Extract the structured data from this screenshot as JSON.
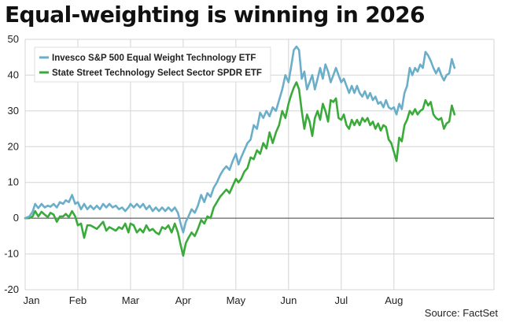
{
  "chart_data": {
    "type": "line",
    "title": "Equal-weighting is winning in 2026",
    "source": "Source: FactSet",
    "ylim": [
      -20,
      50
    ],
    "yticks": [
      -20,
      -10,
      0,
      10,
      20,
      30,
      40,
      50
    ],
    "ytick_labels": [
      "-20",
      "-10",
      "0",
      "10",
      "20",
      "30",
      "40",
      "50"
    ],
    "xlim": [
      0,
      8.9
    ],
    "xticks": [
      0,
      1,
      2,
      3,
      4,
      5,
      6,
      7
    ],
    "xtick_labels": [
      "Jan",
      "Feb",
      "Mar",
      "Apr",
      "May",
      "Jun",
      "Jul",
      "Aug"
    ],
    "grid": true,
    "legend_position": "top-left",
    "series": [
      {
        "name": "Invesco S&P 500 Equal Weight Technology ETF",
        "color": "#6aaec9",
        "points": [
          [
            0,
            0
          ],
          [
            0.08,
            0.5
          ],
          [
            0.14,
            1.8
          ],
          [
            0.19,
            4
          ],
          [
            0.25,
            2.8
          ],
          [
            0.31,
            4
          ],
          [
            0.37,
            3
          ],
          [
            0.43,
            3.5
          ],
          [
            0.48,
            3.2
          ],
          [
            0.54,
            4
          ],
          [
            0.6,
            3
          ],
          [
            0.66,
            4.5
          ],
          [
            0.72,
            4
          ],
          [
            0.77,
            5
          ],
          [
            0.83,
            4.5
          ],
          [
            0.89,
            6.5
          ],
          [
            0.95,
            4
          ],
          [
            1,
            4.5
          ],
          [
            1.06,
            2.5
          ],
          [
            1.12,
            4
          ],
          [
            1.18,
            2.5
          ],
          [
            1.24,
            3.5
          ],
          [
            1.3,
            2.5
          ],
          [
            1.36,
            3.5
          ],
          [
            1.42,
            2.5
          ],
          [
            1.48,
            4
          ],
          [
            1.54,
            3
          ],
          [
            1.6,
            4
          ],
          [
            1.66,
            3
          ],
          [
            1.72,
            3.5
          ],
          [
            1.78,
            2.5
          ],
          [
            1.84,
            3
          ],
          [
            1.9,
            2
          ],
          [
            1.96,
            3
          ],
          [
            2,
            4
          ],
          [
            2.06,
            3
          ],
          [
            2.12,
            4
          ],
          [
            2.18,
            3
          ],
          [
            2.24,
            4
          ],
          [
            2.3,
            2.5
          ],
          [
            2.36,
            3.5
          ],
          [
            2.42,
            2
          ],
          [
            2.48,
            3
          ],
          [
            2.54,
            2
          ],
          [
            2.6,
            3
          ],
          [
            2.66,
            2
          ],
          [
            2.72,
            3
          ],
          [
            2.78,
            2
          ],
          [
            2.84,
            3
          ],
          [
            2.9,
            1.5
          ],
          [
            2.96,
            -2
          ],
          [
            3,
            -4
          ],
          [
            3.05,
            -1
          ],
          [
            3.1,
            0.5
          ],
          [
            3.16,
            2.5
          ],
          [
            3.22,
            1.5
          ],
          [
            3.28,
            3.5
          ],
          [
            3.34,
            6.5
          ],
          [
            3.4,
            4.5
          ],
          [
            3.46,
            7
          ],
          [
            3.52,
            6
          ],
          [
            3.58,
            8.5
          ],
          [
            3.64,
            10
          ],
          [
            3.7,
            12
          ],
          [
            3.76,
            13.5
          ],
          [
            3.82,
            14.5
          ],
          [
            3.88,
            13.5
          ],
          [
            3.94,
            16
          ],
          [
            4,
            18
          ],
          [
            4.05,
            15
          ],
          [
            4.1,
            17
          ],
          [
            4.16,
            19
          ],
          [
            4.22,
            21
          ],
          [
            4.28,
            22
          ],
          [
            4.34,
            26
          ],
          [
            4.4,
            25
          ],
          [
            4.46,
            29.5
          ],
          [
            4.52,
            28
          ],
          [
            4.58,
            30
          ],
          [
            4.64,
            28.5
          ],
          [
            4.7,
            31
          ],
          [
            4.76,
            30
          ],
          [
            4.82,
            33
          ],
          [
            4.88,
            36
          ],
          [
            4.94,
            40
          ],
          [
            5,
            38
          ],
          [
            5.05,
            42.5
          ],
          [
            5.1,
            47
          ],
          [
            5.15,
            48
          ],
          [
            5.2,
            47
          ],
          [
            5.25,
            39
          ],
          [
            5.3,
            41
          ],
          [
            5.35,
            36
          ],
          [
            5.4,
            38
          ],
          [
            5.45,
            40
          ],
          [
            5.5,
            36
          ],
          [
            5.55,
            39
          ],
          [
            5.6,
            42
          ],
          [
            5.65,
            39
          ],
          [
            5.7,
            43
          ],
          [
            5.75,
            41
          ],
          [
            5.8,
            38
          ],
          [
            5.85,
            40
          ],
          [
            5.9,
            42
          ],
          [
            5.95,
            40
          ],
          [
            6,
            38
          ],
          [
            6.05,
            39
          ],
          [
            6.1,
            37
          ],
          [
            6.15,
            35
          ],
          [
            6.2,
            37
          ],
          [
            6.25,
            35
          ],
          [
            6.3,
            37
          ],
          [
            6.35,
            35
          ],
          [
            6.4,
            34
          ],
          [
            6.45,
            35.5
          ],
          [
            6.5,
            33.5
          ],
          [
            6.55,
            35
          ],
          [
            6.6,
            33
          ],
          [
            6.65,
            34
          ],
          [
            6.7,
            32
          ],
          [
            6.75,
            32.5
          ],
          [
            6.8,
            31
          ],
          [
            6.85,
            33
          ],
          [
            6.9,
            31
          ],
          [
            6.95,
            30.5
          ],
          [
            7,
            31
          ],
          [
            7.05,
            29
          ],
          [
            7.1,
            32
          ],
          [
            7.15,
            30.5
          ],
          [
            7.2,
            35
          ],
          [
            7.25,
            37
          ],
          [
            7.3,
            42
          ],
          [
            7.35,
            40
          ],
          [
            7.4,
            42
          ],
          [
            7.45,
            41
          ],
          [
            7.5,
            43
          ],
          [
            7.55,
            42
          ],
          [
            7.6,
            46.5
          ],
          [
            7.65,
            45.5
          ],
          [
            7.7,
            44
          ],
          [
            7.75,
            42
          ],
          [
            7.8,
            40.5
          ],
          [
            7.85,
            42
          ],
          [
            7.9,
            40
          ],
          [
            7.95,
            38.5
          ],
          [
            8,
            40
          ],
          [
            8.05,
            40.5
          ],
          [
            8.1,
            44.5
          ],
          [
            8.15,
            42
          ]
        ]
      },
      {
        "name": "State Street Technology Select Sector SPDR ETF",
        "color": "#3aaa3a",
        "points": [
          [
            0,
            0
          ],
          [
            0.08,
            0
          ],
          [
            0.14,
            0.5
          ],
          [
            0.19,
            2
          ],
          [
            0.25,
            0.5
          ],
          [
            0.31,
            1.8
          ],
          [
            0.37,
            1
          ],
          [
            0.43,
            0.3
          ],
          [
            0.48,
            1.5
          ],
          [
            0.54,
            1
          ],
          [
            0.6,
            -1
          ],
          [
            0.66,
            0.5
          ],
          [
            0.72,
            0.5
          ],
          [
            0.77,
            1.2
          ],
          [
            0.83,
            0.3
          ],
          [
            0.89,
            2
          ],
          [
            0.95,
            0.5
          ],
          [
            1,
            -2
          ],
          [
            1.06,
            -1.5
          ],
          [
            1.12,
            -5.5
          ],
          [
            1.18,
            -2
          ],
          [
            1.24,
            -2
          ],
          [
            1.3,
            -2.5
          ],
          [
            1.36,
            -3
          ],
          [
            1.42,
            -2
          ],
          [
            1.48,
            -1
          ],
          [
            1.54,
            -3.5
          ],
          [
            1.6,
            -2.5
          ],
          [
            1.66,
            -3
          ],
          [
            1.72,
            -3.5
          ],
          [
            1.78,
            -2.5
          ],
          [
            1.84,
            -3
          ],
          [
            1.9,
            -1.5
          ],
          [
            1.96,
            -4
          ],
          [
            2,
            -1.5
          ],
          [
            2.06,
            -2
          ],
          [
            2.12,
            -4
          ],
          [
            2.18,
            -3
          ],
          [
            2.24,
            -4
          ],
          [
            2.3,
            -2
          ],
          [
            2.36,
            -3.5
          ],
          [
            2.42,
            -3
          ],
          [
            2.48,
            -4
          ],
          [
            2.54,
            -4.5
          ],
          [
            2.6,
            -2.5
          ],
          [
            2.66,
            -3
          ],
          [
            2.72,
            -2
          ],
          [
            2.78,
            -4
          ],
          [
            2.84,
            -1.5
          ],
          [
            2.9,
            -4
          ],
          [
            2.96,
            -8
          ],
          [
            3,
            -10.5
          ],
          [
            3.05,
            -7
          ],
          [
            3.1,
            -5.5
          ],
          [
            3.16,
            -4
          ],
          [
            3.22,
            -5
          ],
          [
            3.28,
            -3
          ],
          [
            3.34,
            -0.5
          ],
          [
            3.4,
            -1.5
          ],
          [
            3.46,
            0.5
          ],
          [
            3.52,
            0
          ],
          [
            3.58,
            3
          ],
          [
            3.64,
            4.5
          ],
          [
            3.7,
            6
          ],
          [
            3.76,
            7
          ],
          [
            3.82,
            8
          ],
          [
            3.88,
            7
          ],
          [
            3.94,
            9
          ],
          [
            4,
            11
          ],
          [
            4.05,
            10
          ],
          [
            4.1,
            11
          ],
          [
            4.16,
            13
          ],
          [
            4.22,
            14
          ],
          [
            4.28,
            17
          ],
          [
            4.34,
            16.5
          ],
          [
            4.4,
            19
          ],
          [
            4.46,
            18
          ],
          [
            4.52,
            21
          ],
          [
            4.58,
            19.5
          ],
          [
            4.64,
            24
          ],
          [
            4.7,
            21
          ],
          [
            4.76,
            24
          ],
          [
            4.82,
            26
          ],
          [
            4.88,
            30
          ],
          [
            4.94,
            28
          ],
          [
            5,
            32
          ],
          [
            5.05,
            34.5
          ],
          [
            5.1,
            36.5
          ],
          [
            5.15,
            38
          ],
          [
            5.2,
            36
          ],
          [
            5.25,
            30
          ],
          [
            5.3,
            25
          ],
          [
            5.35,
            29
          ],
          [
            5.4,
            27
          ],
          [
            5.45,
            23
          ],
          [
            5.5,
            28
          ],
          [
            5.55,
            30
          ],
          [
            5.6,
            27.5
          ],
          [
            5.65,
            32
          ],
          [
            5.7,
            30
          ],
          [
            5.75,
            27
          ],
          [
            5.8,
            33
          ],
          [
            5.85,
            32.5
          ],
          [
            5.9,
            33.5
          ],
          [
            5.95,
            28
          ],
          [
            6,
            27.5
          ],
          [
            6.05,
            29
          ],
          [
            6.1,
            26
          ],
          [
            6.15,
            25
          ],
          [
            6.2,
            27.5
          ],
          [
            6.25,
            26
          ],
          [
            6.3,
            27.5
          ],
          [
            6.35,
            26
          ],
          [
            6.4,
            28
          ],
          [
            6.45,
            27
          ],
          [
            6.5,
            28
          ],
          [
            6.55,
            26
          ],
          [
            6.6,
            27
          ],
          [
            6.65,
            25
          ],
          [
            6.7,
            26.5
          ],
          [
            6.75,
            24.5
          ],
          [
            6.8,
            26
          ],
          [
            6.85,
            25.5
          ],
          [
            6.9,
            22
          ],
          [
            6.95,
            21
          ],
          [
            7,
            18.5
          ],
          [
            7.05,
            16
          ],
          [
            7.1,
            22.5
          ],
          [
            7.15,
            21.5
          ],
          [
            7.2,
            26
          ],
          [
            7.25,
            27.5
          ],
          [
            7.3,
            30
          ],
          [
            7.35,
            29
          ],
          [
            7.4,
            30.5
          ],
          [
            7.45,
            29
          ],
          [
            7.5,
            30
          ],
          [
            7.55,
            30.5
          ],
          [
            7.6,
            33
          ],
          [
            7.65,
            31.5
          ],
          [
            7.7,
            32.5
          ],
          [
            7.75,
            29
          ],
          [
            7.8,
            28
          ],
          [
            7.85,
            27.5
          ],
          [
            7.9,
            28
          ],
          [
            7.95,
            25
          ],
          [
            8,
            26.5
          ],
          [
            8.05,
            27
          ],
          [
            8.1,
            31.5
          ],
          [
            8.15,
            29
          ]
        ]
      }
    ]
  }
}
